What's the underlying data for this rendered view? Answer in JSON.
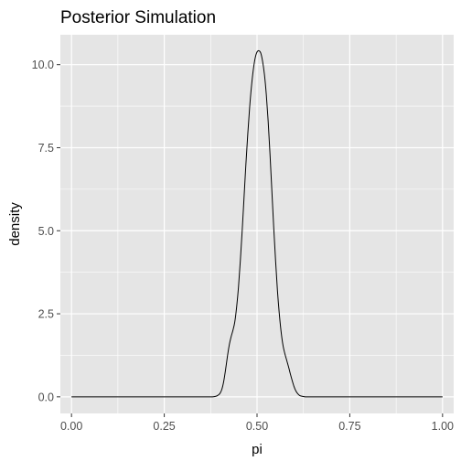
{
  "chart_data": {
    "type": "line",
    "title": "Posterior Simulation",
    "xlabel": "pi",
    "ylabel": "density",
    "xlim": [
      -0.03,
      1.03
    ],
    "ylim": [
      -0.5,
      10.9
    ],
    "x_ticks": [
      0.0,
      0.25,
      0.5,
      0.75,
      1.0
    ],
    "x_tick_labels": [
      "0.00",
      "0.25",
      "0.50",
      "0.75",
      "1.00"
    ],
    "y_ticks": [
      0.0,
      2.5,
      5.0,
      7.5,
      10.0
    ],
    "y_tick_labels": [
      "0.0",
      "2.5",
      "5.0",
      "7.5",
      "10.0"
    ],
    "grid": true,
    "panel_background": "#e5e5e5",
    "grid_color": "#ffffff",
    "line_color": "#000000",
    "series": [
      {
        "x": [
          0.0,
          0.1,
          0.2,
          0.3,
          0.36,
          0.38,
          0.39,
          0.395,
          0.4,
          0.405,
          0.41,
          0.415,
          0.42,
          0.425,
          0.43,
          0.435,
          0.44,
          0.445,
          0.45,
          0.455,
          0.46,
          0.465,
          0.47,
          0.475,
          0.48,
          0.485,
          0.49,
          0.495,
          0.5,
          0.505,
          0.51,
          0.515,
          0.52,
          0.525,
          0.53,
          0.535,
          0.54,
          0.545,
          0.55,
          0.555,
          0.56,
          0.565,
          0.57,
          0.575,
          0.58,
          0.585,
          0.59,
          0.595,
          0.6,
          0.605,
          0.61,
          0.615,
          0.62,
          0.625,
          0.63,
          0.64,
          0.66,
          0.7,
          0.8,
          0.9,
          1.0
        ],
        "y": [
          0.0,
          0.0,
          0.0,
          0.0,
          0.0,
          0.0,
          0.02,
          0.05,
          0.1,
          0.22,
          0.45,
          0.8,
          1.2,
          1.55,
          1.8,
          2.0,
          2.25,
          2.7,
          3.3,
          4.1,
          5.0,
          6.0,
          7.0,
          7.9,
          8.7,
          9.35,
          9.85,
          10.2,
          10.38,
          10.42,
          10.35,
          10.1,
          9.7,
          9.1,
          8.3,
          7.3,
          6.2,
          5.1,
          4.1,
          3.2,
          2.5,
          1.95,
          1.55,
          1.3,
          1.1,
          0.9,
          0.68,
          0.48,
          0.3,
          0.17,
          0.09,
          0.04,
          0.02,
          0.01,
          0.0,
          0.0,
          0.0,
          0.0,
          0.0,
          0.0,
          0.0
        ]
      }
    ]
  }
}
